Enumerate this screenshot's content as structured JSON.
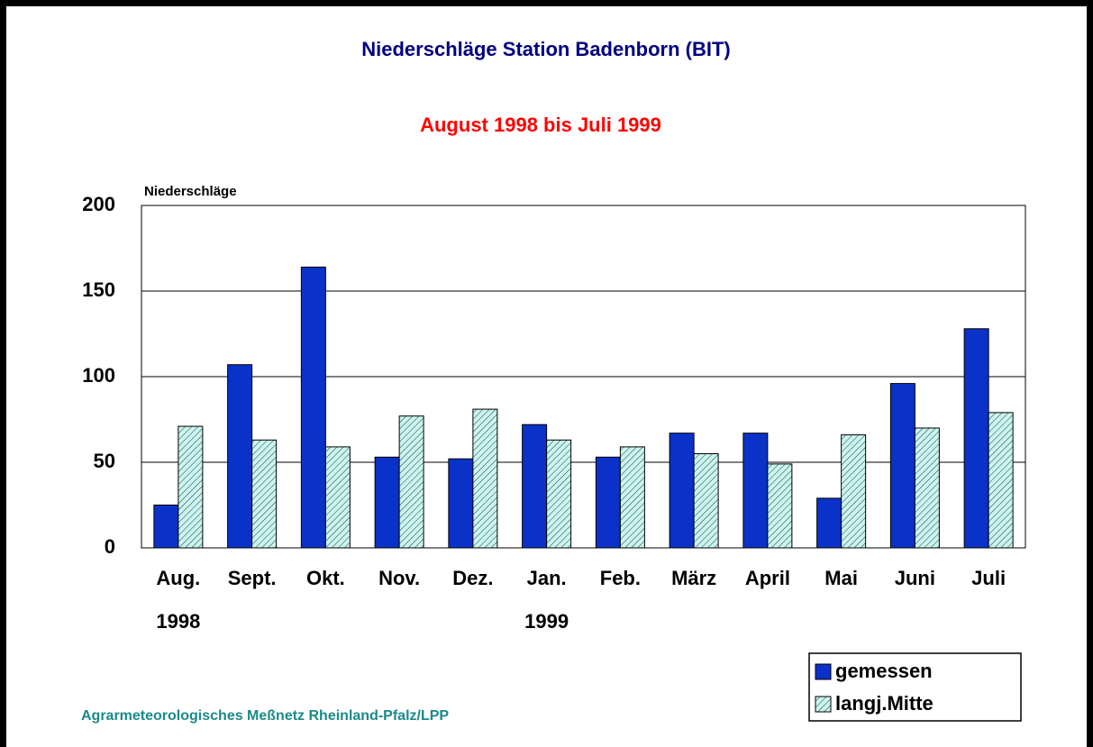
{
  "chart_data": {
    "type": "bar",
    "title": "Niederschläge Station Badenborn (BIT)",
    "subtitle": "August 1998 bis Juli 1999",
    "y_axis_label": "Niederschläge",
    "footer": "Agrarmeteorologisches Meßnetz Rheinland-Pfalz/LPP",
    "categories": [
      "Aug.",
      "Sept.",
      "Okt.",
      "Nov.",
      "Dez.",
      "Jan.",
      "Feb.",
      "März",
      "April",
      "Mai",
      "Juni",
      "Juli"
    ],
    "category_years": [
      "1998",
      null,
      null,
      null,
      null,
      "1999",
      null,
      null,
      null,
      null,
      null,
      null
    ],
    "series": [
      {
        "name": "gemessen",
        "color": "#0a32c8",
        "hatch": false,
        "values": [
          25,
          107,
          164,
          53,
          52,
          72,
          53,
          67,
          67,
          29,
          96,
          128
        ]
      },
      {
        "name": "langj.Mitte",
        "color": "#c8f5f0",
        "hatch": true,
        "values": [
          71,
          63,
          59,
          77,
          81,
          63,
          59,
          55,
          49,
          66,
          70,
          79
        ]
      }
    ],
    "ylim": [
      0,
      200
    ],
    "yticks": [
      0,
      50,
      100,
      150,
      200
    ],
    "grid": true,
    "legend": "lower right"
  }
}
